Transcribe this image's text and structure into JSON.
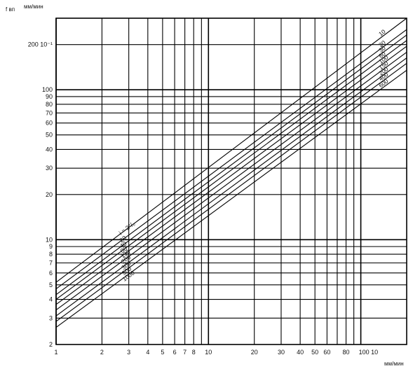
{
  "chart_data": {
    "type": "line",
    "title": "",
    "ylabel_symbol": "f вп",
    "ylabel_unit": "мм/мин",
    "xlabel_unit": "мм/мин",
    "x_scale": "log",
    "y_scale": "log",
    "xlim": [
      1,
      200
    ],
    "ylim": [
      2,
      300
    ],
    "x_ticks": [
      {
        "value": 1,
        "label": "1"
      },
      {
        "value": 2,
        "label": "2"
      },
      {
        "value": 3,
        "label": "3"
      },
      {
        "value": 4,
        "label": "4"
      },
      {
        "value": 5,
        "label": "5"
      },
      {
        "value": 6,
        "label": "6"
      },
      {
        "value": 7,
        "label": "7"
      },
      {
        "value": 8,
        "label": "8"
      },
      {
        "value": 10,
        "label": "10"
      },
      {
        "value": 20,
        "label": "20"
      },
      {
        "value": 30,
        "label": "30"
      },
      {
        "value": 40,
        "label": "40"
      },
      {
        "value": 50,
        "label": "50"
      },
      {
        "value": 60,
        "label": "60"
      },
      {
        "value": 80,
        "label": "80"
      },
      {
        "value": 100,
        "label": "100 10"
      }
    ],
    "x_minor": [
      9,
      70,
      90
    ],
    "y_ticks": [
      {
        "value": 2,
        "label": "2"
      },
      {
        "value": 3,
        "label": "3"
      },
      {
        "value": 4,
        "label": "4"
      },
      {
        "value": 5,
        "label": "5"
      },
      {
        "value": 6,
        "label": "6"
      },
      {
        "value": 7,
        "label": "7"
      },
      {
        "value": 8,
        "label": "8"
      },
      {
        "value": 9,
        "label": "9"
      },
      {
        "value": 10,
        "label": "10"
      },
      {
        "value": 20,
        "label": "20"
      },
      {
        "value": 30,
        "label": "30"
      },
      {
        "value": 40,
        "label": "40"
      },
      {
        "value": 50,
        "label": "50"
      },
      {
        "value": 60,
        "label": "60"
      },
      {
        "value": 70,
        "label": "70"
      },
      {
        "value": 80,
        "label": "80"
      },
      {
        "value": 90,
        "label": "90"
      },
      {
        "value": 100,
        "label": "100"
      },
      {
        "value": 200,
        "label": "200 10⁻¹"
      }
    ],
    "series": [
      {
        "name": "i = 2°",
        "label_left": "i = 2°/₀",
        "label_right": "10",
        "points": [
          [
            1,
            5.2
          ],
          [
            200,
            300
          ]
        ]
      },
      {
        "name": "20",
        "label_left": "20",
        "label_right": "20",
        "points": [
          [
            1,
            4.7
          ],
          [
            200,
            252
          ]
        ]
      },
      {
        "name": "40",
        "label_left": "40",
        "label_right": "30",
        "points": [
          [
            1,
            4.3
          ],
          [
            200,
            232
          ]
        ]
      },
      {
        "name": "80",
        "label_left": "80",
        "label_right": "60",
        "points": [
          [
            1,
            4.0
          ],
          [
            200,
            213
          ]
        ]
      },
      {
        "name": "130",
        "label_left": "130",
        "label_right": "100",
        "points": [
          [
            1,
            3.7
          ],
          [
            200,
            195
          ]
        ]
      },
      {
        "name": "200",
        "label_left": "200",
        "label_right": "150",
        "points": [
          [
            1,
            3.4
          ],
          [
            200,
            178
          ]
        ]
      },
      {
        "name": "300",
        "label_left": "300",
        "label_right": "200",
        "points": [
          [
            1,
            3.1
          ],
          [
            200,
            163
          ]
        ]
      },
      {
        "name": "500",
        "label_left": "500",
        "label_right": "400",
        "points": [
          [
            1,
            2.85
          ],
          [
            200,
            150
          ]
        ]
      },
      {
        "name": "1000",
        "label_left": "1000",
        "label_right": "600",
        "points": [
          [
            1,
            2.6
          ],
          [
            200,
            135
          ]
        ]
      }
    ]
  }
}
